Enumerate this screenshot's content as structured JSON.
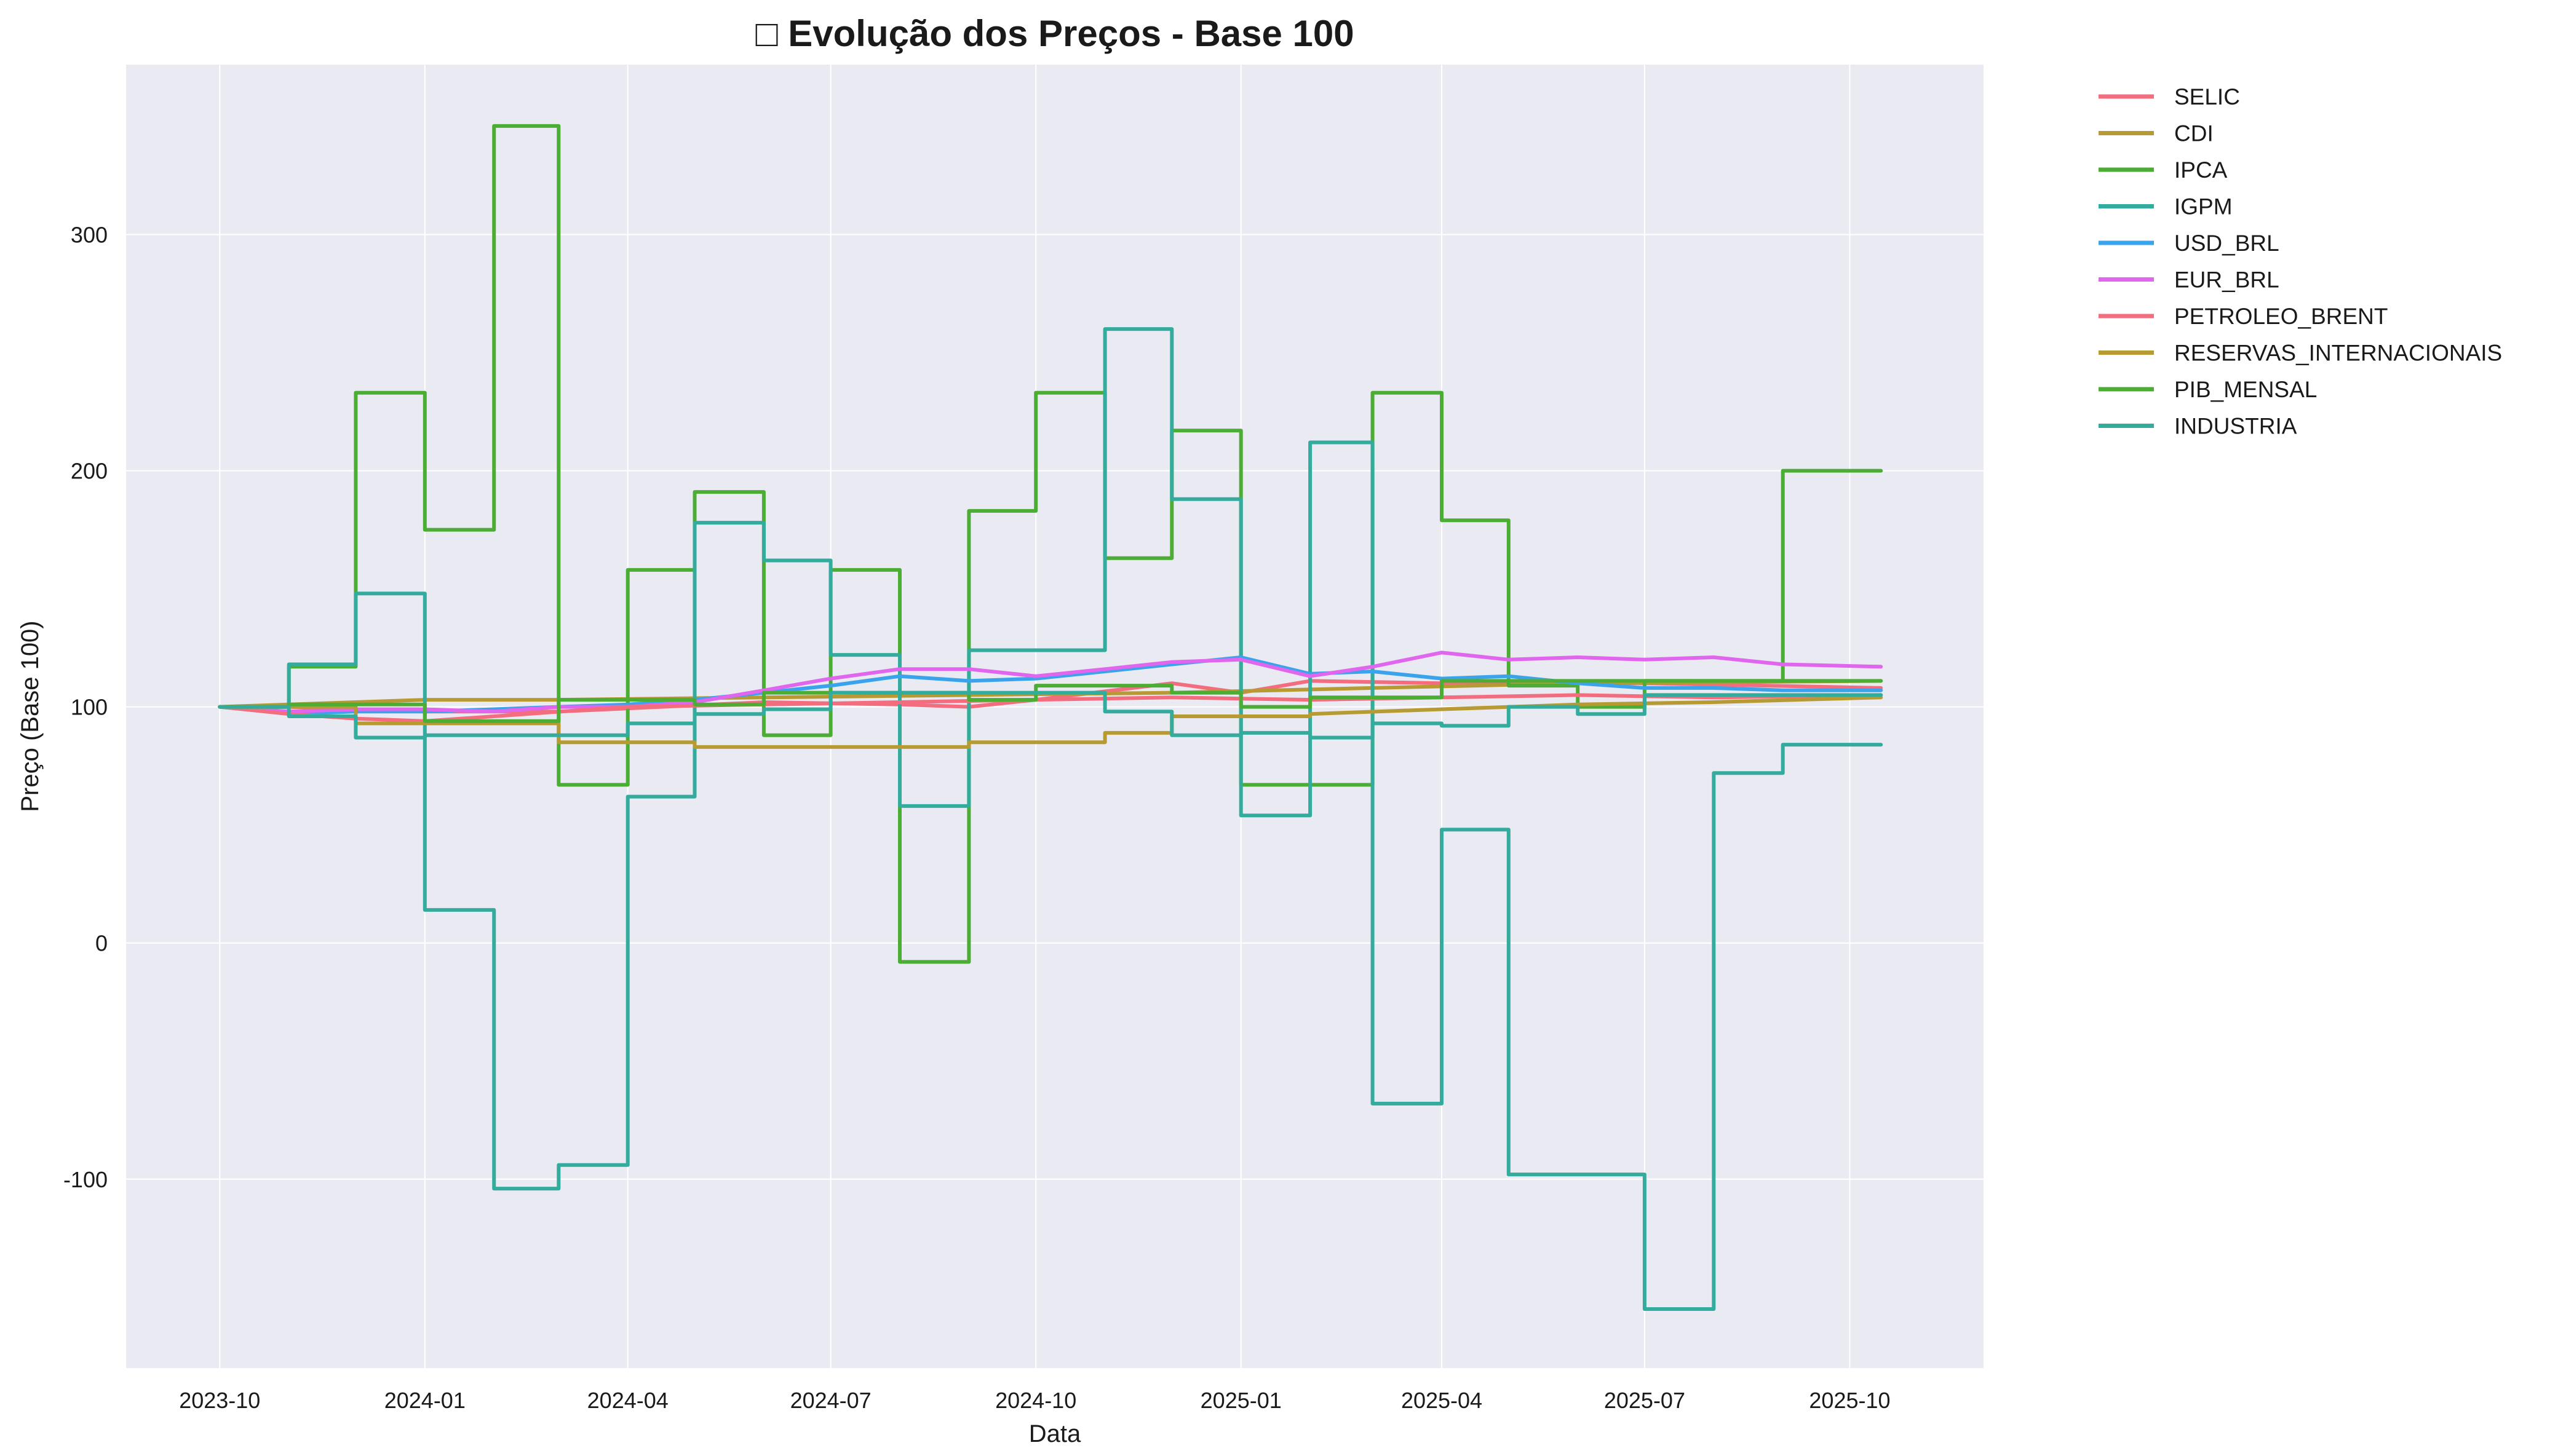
{
  "chart_data": {
    "type": "line",
    "title": "□ Evolução dos Preços - Base 100",
    "xlabel": "Data",
    "ylabel": "Preço (Base 100)",
    "x_ticks": [
      "2023-10",
      "2024-01",
      "2024-04",
      "2024-07",
      "2024-10",
      "2025-01",
      "2025-04",
      "2025-07",
      "2025-10"
    ],
    "y_ticks": [
      -100,
      0,
      100,
      200,
      300
    ],
    "xlim": [
      "2023-08-20",
      "2025-11-30"
    ],
    "ylim": [
      -180,
      372
    ],
    "grid": true,
    "legend_position": "outside-top-right",
    "series": [
      {
        "name": "SELIC",
        "color": "#f36d7f",
        "points": [
          [
            "2023-10-01",
            100
          ],
          [
            "2023-11-01",
            100
          ],
          [
            "2023-12-01",
            99
          ],
          [
            "2024-01-01",
            98
          ],
          [
            "2024-03-01",
            98
          ],
          [
            "2024-06-01",
            102
          ],
          [
            "2024-08-01",
            101
          ],
          [
            "2024-09-01",
            100
          ],
          [
            "2024-10-01",
            103
          ],
          [
            "2024-12-01",
            110
          ],
          [
            "2025-01-01",
            106
          ],
          [
            "2025-02-01",
            111
          ],
          [
            "2025-04-01",
            110
          ],
          [
            "2025-06-01",
            110
          ],
          [
            "2025-07-01",
            110
          ],
          [
            "2025-10-15",
            108
          ]
        ]
      },
      {
        "name": "CDI",
        "color": "#b79a31",
        "points": [
          [
            "2023-10-01",
            100
          ],
          [
            "2023-12-01",
            102
          ],
          [
            "2024-01-01",
            103
          ],
          [
            "2024-03-01",
            103
          ],
          [
            "2024-06-01",
            104
          ],
          [
            "2024-09-01",
            105
          ],
          [
            "2024-12-01",
            106
          ],
          [
            "2025-03-01",
            108
          ],
          [
            "2025-06-01",
            110
          ],
          [
            "2025-10-15",
            111
          ]
        ]
      },
      {
        "name": "IPCA",
        "color": "#4cad34",
        "points": [
          [
            "2023-10-01",
            100
          ],
          [
            "2023-11-01",
            100
          ],
          [
            "2023-11-01",
            117
          ],
          [
            "2023-12-01",
            117
          ],
          [
            "2023-12-01",
            233
          ],
          [
            "2024-01-01",
            233
          ],
          [
            "2024-01-01",
            175
          ],
          [
            "2024-02-01",
            175
          ],
          [
            "2024-02-01",
            346
          ],
          [
            "2024-03-01",
            346
          ],
          [
            "2024-03-01",
            67
          ],
          [
            "2024-04-01",
            67
          ],
          [
            "2024-04-01",
            158
          ],
          [
            "2024-05-01",
            158
          ],
          [
            "2024-05-01",
            191
          ],
          [
            "2024-06-01",
            191
          ],
          [
            "2024-06-01",
            88
          ],
          [
            "2024-07-01",
            88
          ],
          [
            "2024-07-01",
            158
          ],
          [
            "2024-08-01",
            158
          ],
          [
            "2024-08-01",
            -8
          ],
          [
            "2024-09-01",
            -8
          ],
          [
            "2024-09-01",
            183
          ],
          [
            "2024-10-01",
            183
          ],
          [
            "2024-10-01",
            233
          ],
          [
            "2024-11-01",
            233
          ],
          [
            "2024-11-01",
            163
          ],
          [
            "2024-12-01",
            163
          ],
          [
            "2024-12-01",
            217
          ],
          [
            "2025-01-01",
            217
          ],
          [
            "2025-01-01",
            67
          ],
          [
            "2025-03-01",
            67
          ],
          [
            "2025-03-01",
            233
          ],
          [
            "2025-04-01",
            233
          ],
          [
            "2025-04-01",
            179
          ],
          [
            "2025-05-01",
            179
          ],
          [
            "2025-05-01",
            109
          ],
          [
            "2025-06-01",
            109
          ],
          [
            "2025-06-01",
            100
          ],
          [
            "2025-07-01",
            100
          ],
          [
            "2025-07-01",
            111
          ],
          [
            "2025-09-01",
            111
          ],
          [
            "2025-09-01",
            200
          ],
          [
            "2025-10-15",
            200
          ]
        ]
      },
      {
        "name": "IGPM",
        "color": "#33ab9d",
        "points": [
          [
            "2023-10-01",
            100
          ],
          [
            "2023-11-01",
            100
          ],
          [
            "2023-11-01",
            118
          ],
          [
            "2023-12-01",
            118
          ],
          [
            "2023-12-01",
            148
          ],
          [
            "2024-01-01",
            148
          ],
          [
            "2024-01-01",
            14
          ],
          [
            "2024-02-01",
            14
          ],
          [
            "2024-02-01",
            -104
          ],
          [
            "2024-03-01",
            -104
          ],
          [
            "2024-03-01",
            -94
          ],
          [
            "2024-04-01",
            -94
          ],
          [
            "2024-04-01",
            62
          ],
          [
            "2024-05-01",
            62
          ],
          [
            "2024-05-01",
            178
          ],
          [
            "2024-06-01",
            178
          ],
          [
            "2024-06-01",
            162
          ],
          [
            "2024-07-01",
            162
          ],
          [
            "2024-07-01",
            122
          ],
          [
            "2024-08-01",
            122
          ],
          [
            "2024-08-01",
            58
          ],
          [
            "2024-09-01",
            58
          ],
          [
            "2024-09-01",
            124
          ],
          [
            "2024-11-01",
            124
          ],
          [
            "2024-11-01",
            260
          ],
          [
            "2024-12-01",
            260
          ],
          [
            "2024-12-01",
            188
          ],
          [
            "2025-01-01",
            188
          ],
          [
            "2025-01-01",
            54
          ],
          [
            "2025-02-01",
            54
          ],
          [
            "2025-02-01",
            212
          ],
          [
            "2025-03-01",
            212
          ],
          [
            "2025-03-01",
            -68
          ],
          [
            "2025-04-01",
            -68
          ],
          [
            "2025-04-01",
            48
          ],
          [
            "2025-05-01",
            48
          ],
          [
            "2025-05-01",
            -98
          ],
          [
            "2025-07-01",
            -98
          ],
          [
            "2025-07-01",
            -155
          ],
          [
            "2025-08-01",
            -155
          ],
          [
            "2025-08-01",
            72
          ],
          [
            "2025-09-01",
            72
          ],
          [
            "2025-09-01",
            84
          ],
          [
            "2025-10-15",
            84
          ]
        ]
      },
      {
        "name": "USD_BRL",
        "color": "#3ba3ec",
        "points": [
          [
            "2023-10-01",
            100
          ],
          [
            "2023-11-01",
            97
          ],
          [
            "2023-12-01",
            98
          ],
          [
            "2024-01-01",
            98
          ],
          [
            "2024-02-01",
            99
          ],
          [
            "2024-03-01",
            100
          ],
          [
            "2024-04-01",
            101
          ],
          [
            "2024-05-01",
            103
          ],
          [
            "2024-06-01",
            106
          ],
          [
            "2024-07-01",
            109
          ],
          [
            "2024-08-01",
            113
          ],
          [
            "2024-09-01",
            111
          ],
          [
            "2024-10-01",
            112
          ],
          [
            "2024-11-01",
            115
          ],
          [
            "2024-12-01",
            118
          ],
          [
            "2025-01-01",
            121
          ],
          [
            "2025-02-01",
            114
          ],
          [
            "2025-03-01",
            115
          ],
          [
            "2025-04-01",
            112
          ],
          [
            "2025-05-01",
            113
          ],
          [
            "2025-06-01",
            110
          ],
          [
            "2025-07-01",
            108
          ],
          [
            "2025-08-01",
            108
          ],
          [
            "2025-09-01",
            107
          ],
          [
            "2025-10-15",
            107
          ]
        ]
      },
      {
        "name": "EUR_BRL",
        "color": "#e166ee",
        "points": [
          [
            "2023-10-01",
            100
          ],
          [
            "2023-11-01",
            98
          ],
          [
            "2023-12-01",
            99
          ],
          [
            "2024-01-01",
            99
          ],
          [
            "2024-02-01",
            98
          ],
          [
            "2024-03-01",
            100
          ],
          [
            "2024-04-01",
            100
          ],
          [
            "2024-05-01",
            102
          ],
          [
            "2024-06-01",
            107
          ],
          [
            "2024-07-01",
            112
          ],
          [
            "2024-08-01",
            116
          ],
          [
            "2024-09-01",
            116
          ],
          [
            "2024-10-01",
            113
          ],
          [
            "2024-11-01",
            116
          ],
          [
            "2024-12-01",
            119
          ],
          [
            "2025-01-01",
            120
          ],
          [
            "2025-02-01",
            113
          ],
          [
            "2025-03-01",
            117
          ],
          [
            "2025-04-01",
            123
          ],
          [
            "2025-05-01",
            120
          ],
          [
            "2025-06-01",
            121
          ],
          [
            "2025-07-01",
            120
          ],
          [
            "2025-08-01",
            121
          ],
          [
            "2025-09-01",
            118
          ],
          [
            "2025-10-15",
            117
          ]
        ]
      },
      {
        "name": "PETROLEO_BRENT",
        "color": "#f36d7f",
        "points": [
          [
            "2023-10-01",
            100
          ],
          [
            "2023-11-01",
            97
          ],
          [
            "2023-12-01",
            95
          ],
          [
            "2024-01-01",
            94
          ],
          [
            "2024-02-01",
            96
          ],
          [
            "2024-04-01",
            100
          ],
          [
            "2024-06-01",
            101
          ],
          [
            "2024-08-01",
            102
          ],
          [
            "2024-10-01",
            103
          ],
          [
            "2024-12-01",
            104
          ],
          [
            "2025-02-01",
            103
          ],
          [
            "2025-04-01",
            104
          ],
          [
            "2025-06-01",
            105
          ],
          [
            "2025-08-01",
            104
          ],
          [
            "2025-10-15",
            105
          ]
        ]
      },
      {
        "name": "RESERVAS_INTERNACIONAIS",
        "color": "#b79a31",
        "points": [
          [
            "2023-10-01",
            100
          ],
          [
            "2023-11-01",
            100
          ],
          [
            "2023-12-01",
            100
          ],
          [
            "2023-12-01",
            93
          ],
          [
            "2024-03-01",
            93
          ],
          [
            "2024-03-01",
            85
          ],
          [
            "2024-05-01",
            85
          ],
          [
            "2024-05-01",
            83
          ],
          [
            "2024-09-01",
            83
          ],
          [
            "2024-09-01",
            85
          ],
          [
            "2024-11-01",
            85
          ],
          [
            "2024-11-01",
            89
          ],
          [
            "2024-12-01",
            89
          ],
          [
            "2024-12-01",
            96
          ],
          [
            "2025-02-01",
            96
          ],
          [
            "2025-02-01",
            97
          ],
          [
            "2025-04-01",
            99
          ],
          [
            "2025-06-01",
            101
          ],
          [
            "2025-08-01",
            102
          ],
          [
            "2025-10-15",
            104
          ]
        ]
      },
      {
        "name": "PIB_MENSAL",
        "color": "#4cad34",
        "points": [
          [
            "2023-10-01",
            100
          ],
          [
            "2023-11-01",
            100
          ],
          [
            "2023-11-01",
            101
          ],
          [
            "2024-01-01",
            101
          ],
          [
            "2024-01-01",
            94
          ],
          [
            "2024-03-01",
            94
          ],
          [
            "2024-03-01",
            103
          ],
          [
            "2024-05-01",
            103
          ],
          [
            "2024-05-01",
            101
          ],
          [
            "2024-06-01",
            101
          ],
          [
            "2024-06-01",
            106
          ],
          [
            "2024-09-01",
            106
          ],
          [
            "2024-09-01",
            103
          ],
          [
            "2024-10-01",
            103
          ],
          [
            "2024-10-01",
            109
          ],
          [
            "2024-12-01",
            109
          ],
          [
            "2024-12-01",
            106
          ],
          [
            "2025-01-01",
            106
          ],
          [
            "2025-01-01",
            100
          ],
          [
            "2025-02-01",
            100
          ],
          [
            "2025-02-01",
            104
          ],
          [
            "2025-04-01",
            104
          ],
          [
            "2025-04-01",
            111
          ],
          [
            "2025-08-01",
            111
          ],
          [
            "2025-10-15",
            111
          ]
        ]
      },
      {
        "name": "INDUSTRIA",
        "color": "#33ab9d",
        "points": [
          [
            "2023-10-01",
            100
          ],
          [
            "2023-11-01",
            100
          ],
          [
            "2023-11-01",
            96
          ],
          [
            "2023-12-01",
            96
          ],
          [
            "2023-12-01",
            87
          ],
          [
            "2024-01-01",
            87
          ],
          [
            "2024-01-01",
            88
          ],
          [
            "2024-04-01",
            88
          ],
          [
            "2024-04-01",
            93
          ],
          [
            "2024-05-01",
            93
          ],
          [
            "2024-05-01",
            97
          ],
          [
            "2024-06-01",
            97
          ],
          [
            "2024-06-01",
            99
          ],
          [
            "2024-07-01",
            99
          ],
          [
            "2024-07-01",
            106
          ],
          [
            "2024-11-01",
            106
          ],
          [
            "2024-11-01",
            98
          ],
          [
            "2024-12-01",
            98
          ],
          [
            "2024-12-01",
            88
          ],
          [
            "2025-01-01",
            88
          ],
          [
            "2025-01-01",
            89
          ],
          [
            "2025-02-01",
            89
          ],
          [
            "2025-02-01",
            87
          ],
          [
            "2025-03-01",
            87
          ],
          [
            "2025-03-01",
            93
          ],
          [
            "2025-04-01",
            93
          ],
          [
            "2025-04-01",
            92
          ],
          [
            "2025-05-01",
            92
          ],
          [
            "2025-05-01",
            100
          ],
          [
            "2025-06-01",
            100
          ],
          [
            "2025-06-01",
            97
          ],
          [
            "2025-07-01",
            97
          ],
          [
            "2025-07-01",
            105
          ],
          [
            "2025-10-15",
            105
          ]
        ]
      }
    ]
  }
}
